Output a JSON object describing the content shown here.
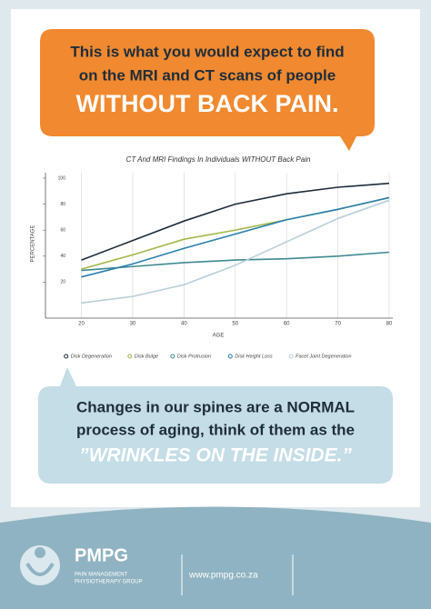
{
  "top_bubble": {
    "lines": [
      "This is what you would expect to find",
      "on the MRI and CT scans of people",
      "WITHOUT BACK PAIN."
    ]
  },
  "chart_data": {
    "type": "line",
    "title": "CT And MRI Findings In Individuals WITHOUT Back Pain",
    "x_label": "AGE",
    "y_label": "PERCENTAGE",
    "x": [
      20,
      30,
      40,
      50,
      60,
      70,
      80
    ],
    "series": [
      {
        "name": "Disk Degeneration",
        "color": "#1f2d3a",
        "values": [
          37,
          52,
          67,
          80,
          88,
          93,
          96
        ]
      },
      {
        "name": "Disk Bulge",
        "color": "#a5b84a",
        "values": [
          30,
          41,
          53,
          60,
          68,
          76,
          85
        ]
      },
      {
        "name": "Disk Protrusion",
        "color": "#3e8a8f",
        "values": [
          29,
          32,
          35,
          37,
          38,
          40,
          43
        ]
      },
      {
        "name": "Disk Height Loss",
        "color": "#2a7fb0",
        "values": [
          24,
          34,
          46,
          57,
          68,
          76,
          85
        ]
      },
      {
        "name": "Facet Joint Degeneration",
        "color": "#b8cfd8",
        "values": [
          4,
          9,
          18,
          33,
          51,
          69,
          83
        ]
      }
    ],
    "xlim": [
      13,
      80
    ],
    "ylim": [
      0,
      100
    ],
    "xticks": [
      20,
      30,
      40,
      50,
      60,
      70,
      80
    ],
    "yticks": [
      20,
      40,
      60,
      80,
      100
    ],
    "grid": "x",
    "legend": "bottom"
  },
  "bottom_bubble": {
    "lines": [
      "Changes in our spines are a NORMAL",
      "process of aging, think of them as the",
      "”WRINKLES ON THE INSIDE.”"
    ]
  },
  "footer": {
    "brand": "PMPG",
    "subtitle_lines": [
      "PAIN MANAGEMENT",
      "PHYSIOTHERAPY GROUP"
    ],
    "website": "www.pmpg.co.za"
  }
}
